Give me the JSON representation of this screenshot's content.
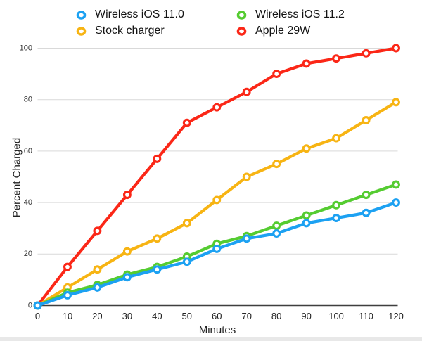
{
  "legend": {
    "items": [
      {
        "label": "Wireless iOS 11.0",
        "color": "#1CA1F2"
      },
      {
        "label": "Wireless iOS 11.2",
        "color": "#55CC31"
      },
      {
        "label": "Stock charger",
        "color": "#F7B413"
      },
      {
        "label": "Apple 29W",
        "color": "#FB2717"
      }
    ]
  },
  "chart_data": {
    "type": "line",
    "title": "",
    "xlabel": "Minutes",
    "ylabel": "Percent Charged",
    "x": [
      0,
      10,
      20,
      30,
      40,
      50,
      60,
      70,
      80,
      90,
      100,
      110,
      120
    ],
    "xticks": [
      0,
      10,
      20,
      30,
      40,
      50,
      60,
      70,
      80,
      90,
      100,
      110,
      120
    ],
    "yticks": [
      0,
      20,
      40,
      60,
      80,
      100
    ],
    "xlim": [
      0,
      120
    ],
    "ylim": [
      0,
      100
    ],
    "grid": "horizontal",
    "legend_position": "top",
    "series": [
      {
        "name": "Apple 29W",
        "color": "#FB2717",
        "values": [
          0,
          15,
          29,
          43,
          57,
          71,
          77,
          83,
          90,
          94,
          96,
          98,
          100
        ]
      },
      {
        "name": "Stock charger",
        "color": "#F7B413",
        "values": [
          0,
          7,
          14,
          21,
          26,
          32,
          41,
          50,
          55,
          61,
          65,
          72,
          79
        ]
      },
      {
        "name": "Wireless iOS 11.2",
        "color": "#55CC31",
        "values": [
          0,
          5,
          8,
          12,
          15,
          19,
          24,
          27,
          31,
          35,
          39,
          43,
          47
        ]
      },
      {
        "name": "Wireless iOS 11.0",
        "color": "#1CA1F2",
        "values": [
          0,
          4,
          7,
          11,
          14,
          17,
          22,
          26,
          28,
          32,
          34,
          36,
          40
        ]
      }
    ],
    "colors": {
      "gridline": "#d9d9d9",
      "axis_line": "#3f3f3f",
      "tick_label": "#333333"
    }
  }
}
